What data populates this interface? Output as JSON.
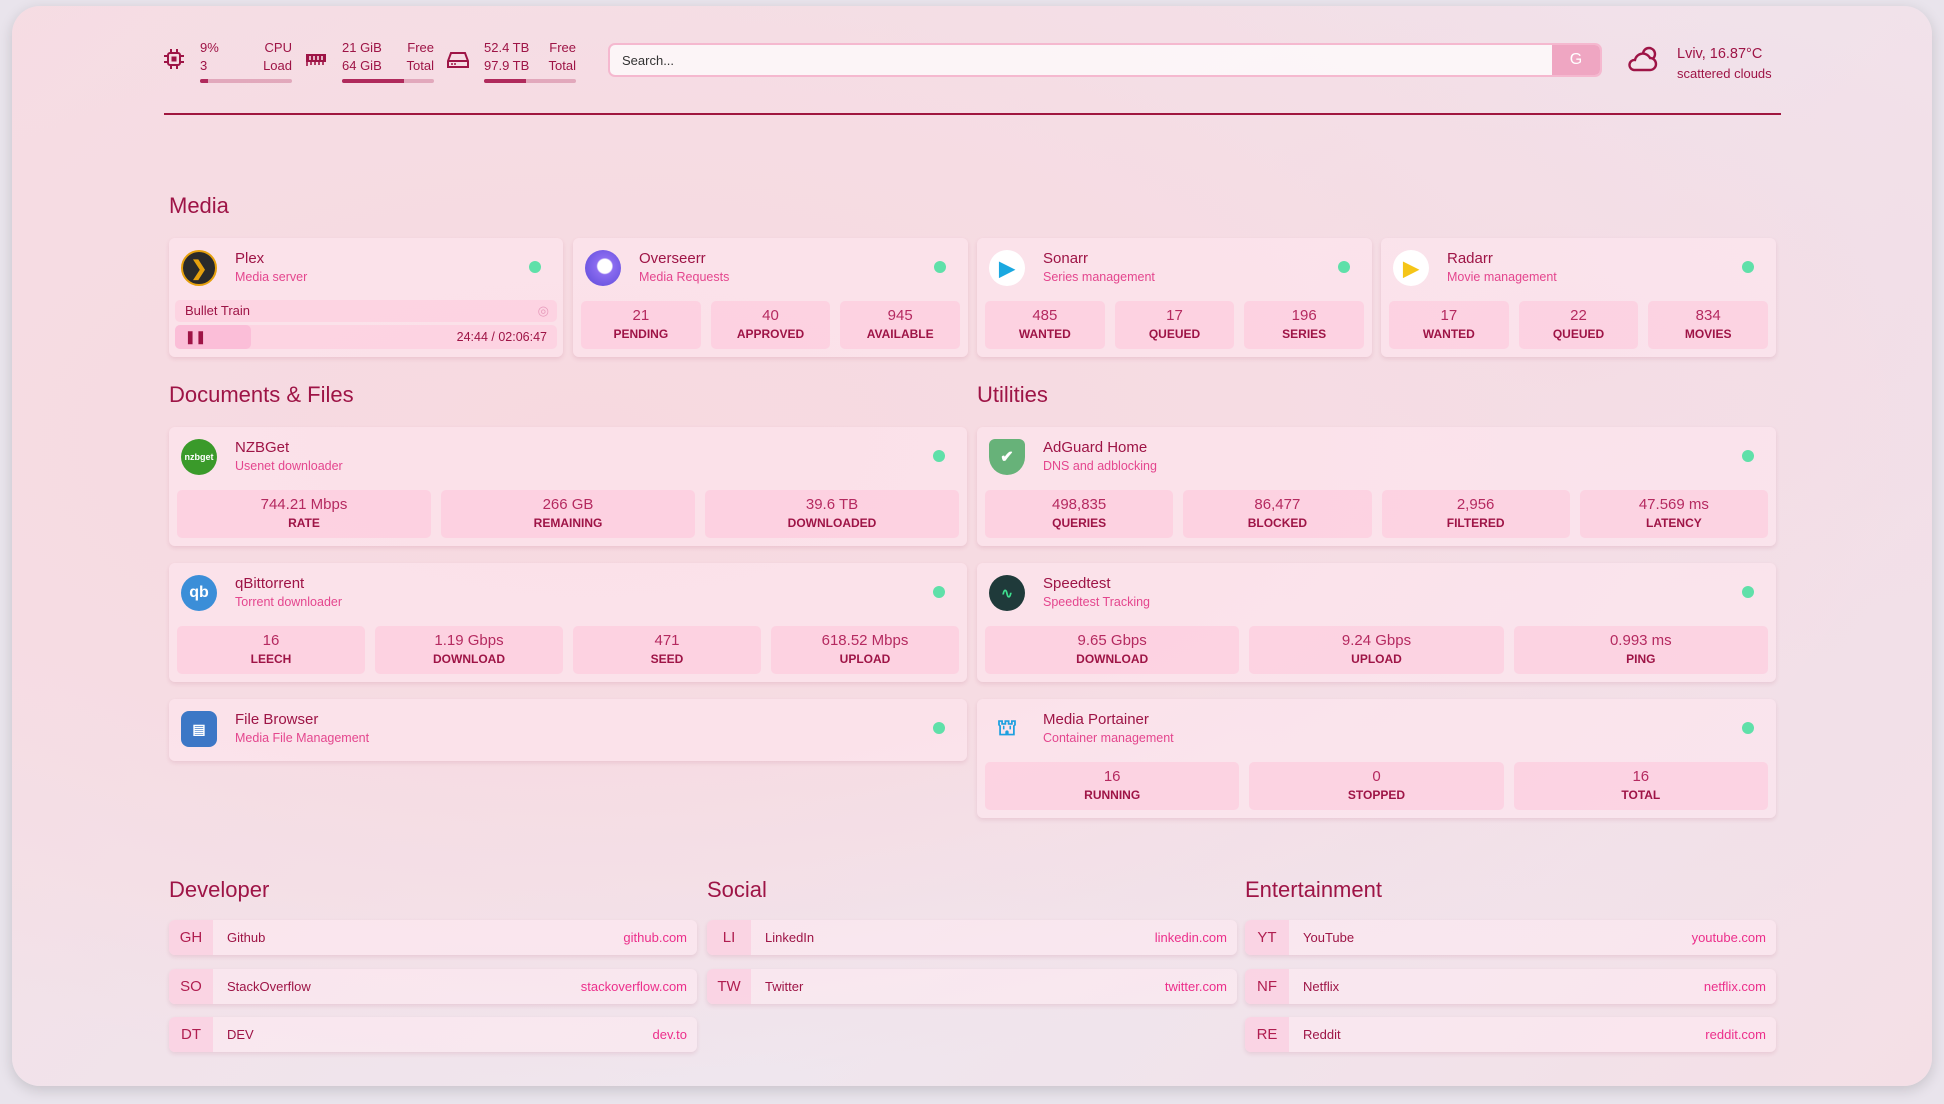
{
  "system": {
    "cpu": {
      "value": "9%",
      "value2": "3",
      "label": "CPU",
      "label2": "Load",
      "fill": 9
    },
    "ram": {
      "value": "21 GiB",
      "value2": "64 GiB",
      "label": "Free",
      "label2": "Total",
      "fill": 67
    },
    "disk": {
      "value": "52.4 TB",
      "value2": "97.9 TB",
      "label": "Free",
      "label2": "Total",
      "fill": 46
    }
  },
  "search": {
    "placeholder": "Search...",
    "engine": "G"
  },
  "weather": {
    "location": "Lviv, 16.87°C",
    "desc": "scattered clouds"
  },
  "colors": {
    "accent": "#9e1446",
    "subtitle": "#e4468e",
    "status": "#5fe0a9",
    "link": "#ec2f8b"
  },
  "media": {
    "title": "Media",
    "cards": [
      {
        "name": "Plex",
        "sub": "Media server",
        "now_playing": "Bullet Train",
        "time": "24:44 / 02:06:47",
        "progress": 20
      },
      {
        "name": "Overseerr",
        "sub": "Media Requests",
        "stats": [
          {
            "v": "21",
            "l": "PENDING"
          },
          {
            "v": "40",
            "l": "APPROVED"
          },
          {
            "v": "945",
            "l": "AVAILABLE"
          }
        ]
      },
      {
        "name": "Sonarr",
        "sub": "Series management",
        "stats": [
          {
            "v": "485",
            "l": "WANTED"
          },
          {
            "v": "17",
            "l": "QUEUED"
          },
          {
            "v": "196",
            "l": "SERIES"
          }
        ]
      },
      {
        "name": "Radarr",
        "sub": "Movie management",
        "stats": [
          {
            "v": "17",
            "l": "WANTED"
          },
          {
            "v": "22",
            "l": "QUEUED"
          },
          {
            "v": "834",
            "l": "MOVIES"
          }
        ]
      }
    ]
  },
  "docs": {
    "title": "Documents & Files",
    "cards": [
      {
        "name": "NZBGet",
        "sub": "Usenet downloader",
        "icon": "nzbget",
        "stats": [
          {
            "v": "744.21 Mbps",
            "l": "RATE"
          },
          {
            "v": "266 GB",
            "l": "REMAINING"
          },
          {
            "v": "39.6 TB",
            "l": "DOWNLOADED"
          }
        ]
      },
      {
        "name": "qBittorrent",
        "sub": "Torrent downloader",
        "icon": "qb",
        "stats": [
          {
            "v": "16",
            "l": "LEECH"
          },
          {
            "v": "1.19 Gbps",
            "l": "DOWNLOAD"
          },
          {
            "v": "471",
            "l": "SEED"
          },
          {
            "v": "618.52 Mbps",
            "l": "UPLOAD"
          }
        ]
      },
      {
        "name": "File Browser",
        "sub": "Media File Management"
      }
    ]
  },
  "utilities": {
    "title": "Utilities",
    "cards": [
      {
        "name": "AdGuard Home",
        "sub": "DNS and adblocking",
        "stats": [
          {
            "v": "498,835",
            "l": "QUERIES"
          },
          {
            "v": "86,477",
            "l": "BLOCKED"
          },
          {
            "v": "2,956",
            "l": "FILTERED"
          },
          {
            "v": "47.569 ms",
            "l": "LATENCY"
          }
        ]
      },
      {
        "name": "Speedtest",
        "sub": "Speedtest Tracking",
        "stats": [
          {
            "v": "9.65 Gbps",
            "l": "DOWNLOAD"
          },
          {
            "v": "9.24 Gbps",
            "l": "UPLOAD"
          },
          {
            "v": "0.993 ms",
            "l": "PING"
          }
        ]
      },
      {
        "name": "Media Portainer",
        "sub": "Container management",
        "stats": [
          {
            "v": "16",
            "l": "RUNNING"
          },
          {
            "v": "0",
            "l": "STOPPED"
          },
          {
            "v": "16",
            "l": "TOTAL"
          }
        ]
      }
    ]
  },
  "bookmarks": [
    {
      "title": "Developer",
      "items": [
        {
          "abbr": "GH",
          "name": "Github",
          "url": "github.com"
        },
        {
          "abbr": "SO",
          "name": "StackOverflow",
          "url": "stackoverflow.com"
        },
        {
          "abbr": "DT",
          "name": "DEV",
          "url": "dev.to"
        }
      ]
    },
    {
      "title": "Social",
      "items": [
        {
          "abbr": "LI",
          "name": "LinkedIn",
          "url": "linkedin.com"
        },
        {
          "abbr": "TW",
          "name": "Twitter",
          "url": "twitter.com"
        }
      ]
    },
    {
      "title": "Entertainment",
      "items": [
        {
          "abbr": "YT",
          "name": "YouTube",
          "url": "youtube.com"
        },
        {
          "abbr": "NF",
          "name": "Netflix",
          "url": "netflix.com"
        },
        {
          "abbr": "RE",
          "name": "Reddit",
          "url": "reddit.com"
        }
      ]
    }
  ]
}
